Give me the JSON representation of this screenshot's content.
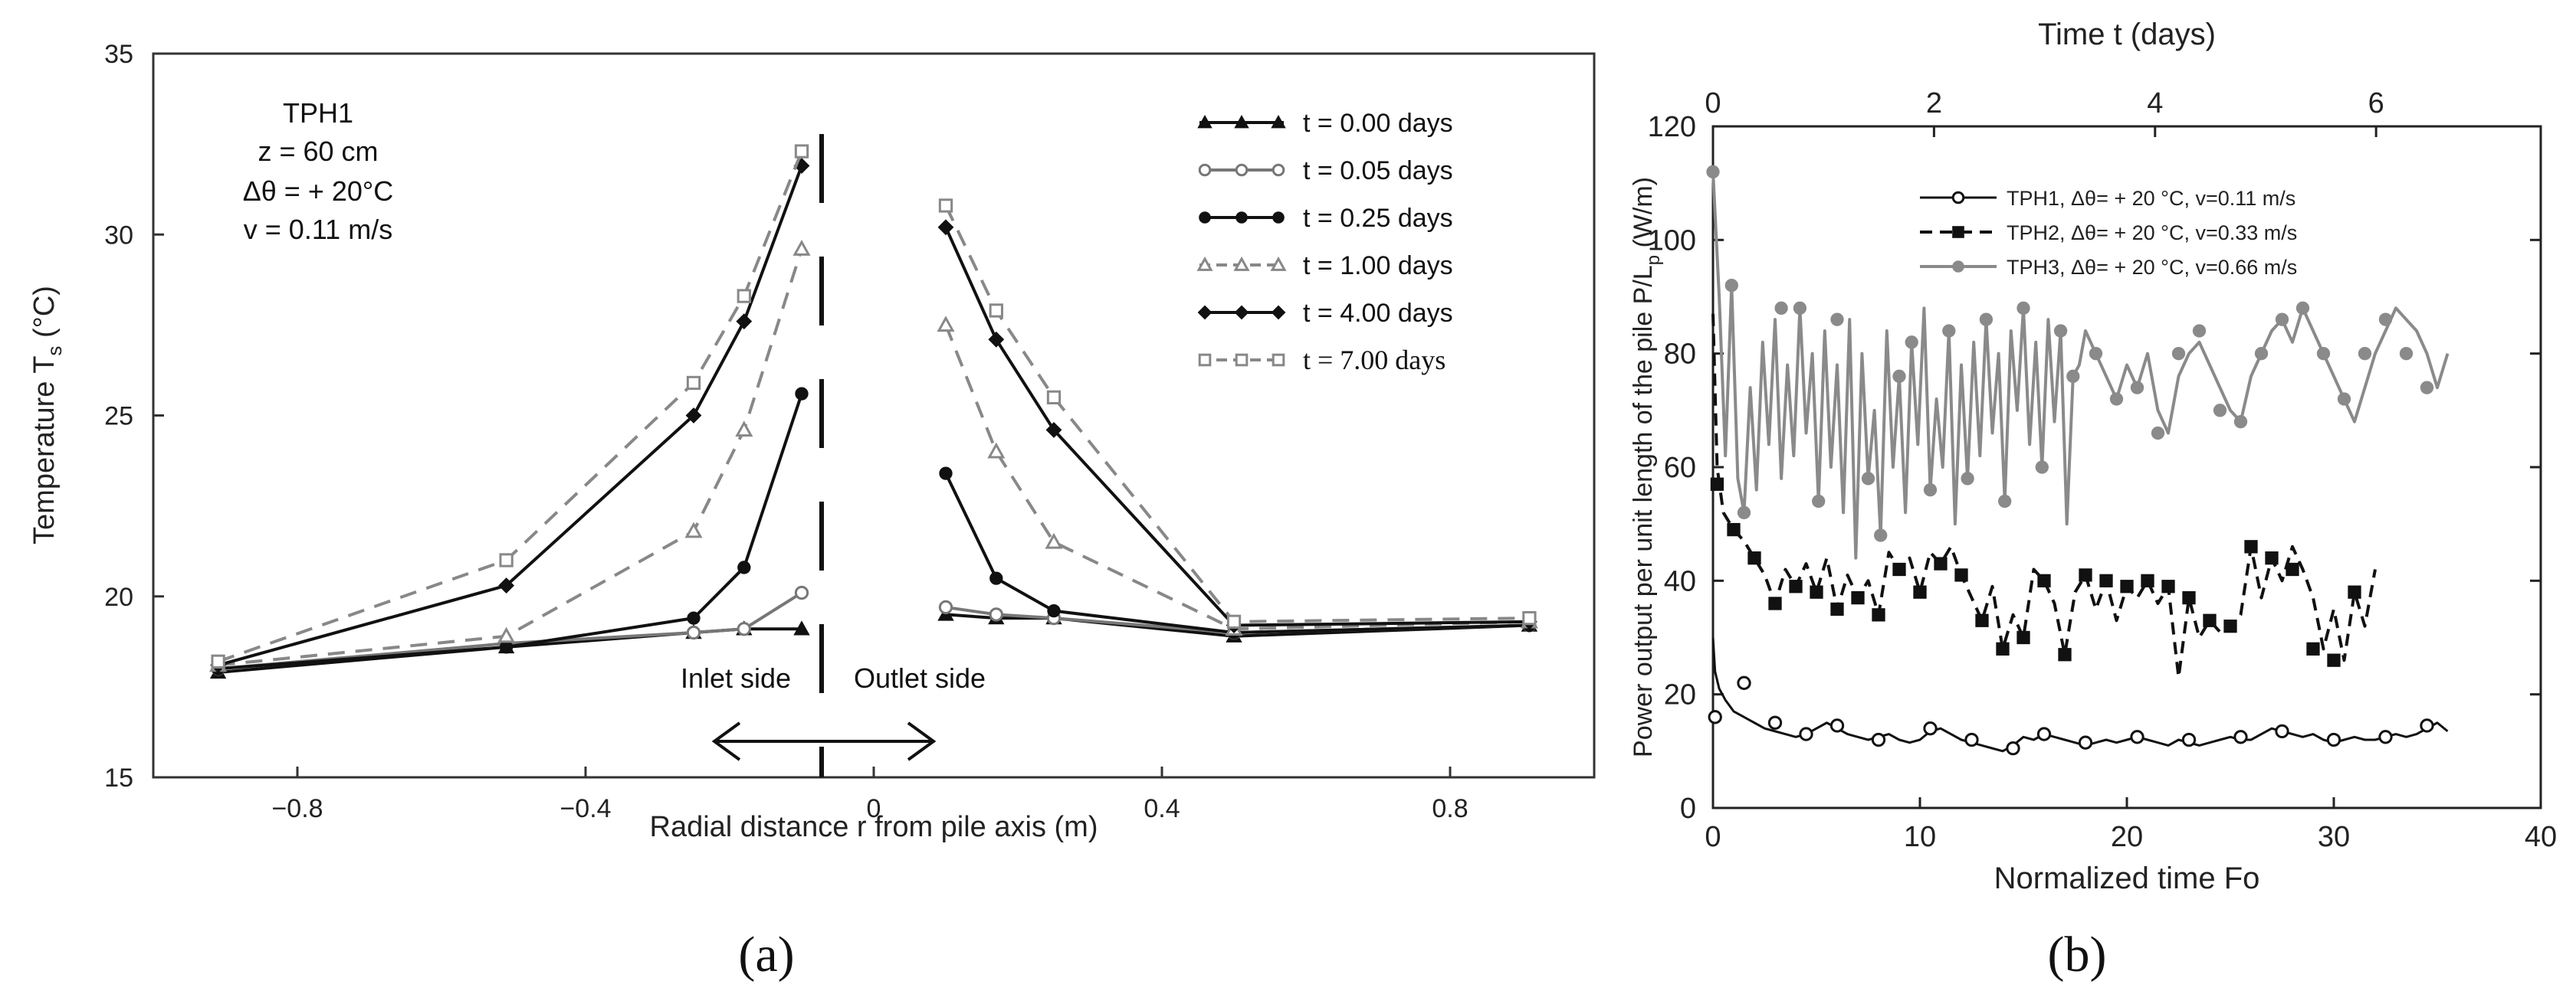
{
  "chart_data": [
    {
      "type": "line",
      "panel_label": "(a)",
      "xlabel": "Radial distance r from pile axis (m)",
      "ylabel_main": "Temperature T",
      "ylabel_sub": "s",
      "ylabel_unit": " (°C)",
      "xlim": [
        -1.0,
        1.0
      ],
      "ylim": [
        15,
        35
      ],
      "xticks": [
        {
          "v": -0.8,
          "label": "−0.8"
        },
        {
          "v": -0.4,
          "label": "−0.4"
        },
        {
          "v": 0,
          "label": "0"
        },
        {
          "v": 0.4,
          "label": "0.4"
        },
        {
          "v": 0.8,
          "label": "0.8"
        }
      ],
      "yticks": [
        {
          "v": 15,
          "label": "15"
        },
        {
          "v": 20,
          "label": "20"
        },
        {
          "v": 25,
          "label": "25"
        },
        {
          "v": 30,
          "label": "30"
        },
        {
          "v": 35,
          "label": "35"
        }
      ],
      "annotation": [
        "TPH1",
        "z = 60 cm",
        "Δθ = + 20°C",
        "v = 0.11 m/s"
      ],
      "inlet_label": "Inlet side",
      "outlet_label": "Outlet side",
      "series": [
        {
          "name": "t = 0.00 days",
          "color": "#111111",
          "dash": "",
          "marker": "triangle",
          "inlet": [
            [
              -0.91,
              17.9
            ],
            [
              -0.51,
              18.6
            ],
            [
              -0.25,
              19.0
            ],
            [
              -0.18,
              19.1
            ],
            [
              -0.1,
              19.1
            ]
          ],
          "outlet": [
            [
              0.1,
              19.5
            ],
            [
              0.17,
              19.4
            ],
            [
              0.25,
              19.4
            ],
            [
              0.5,
              18.9
            ],
            [
              0.91,
              19.2
            ]
          ]
        },
        {
          "name": "t = 0.05 days",
          "color": "#777777",
          "dash": "",
          "marker": "circle-open",
          "inlet": [
            [
              -0.91,
              18.0
            ],
            [
              -0.51,
              18.7
            ],
            [
              -0.25,
              19.0
            ],
            [
              -0.18,
              19.1
            ],
            [
              -0.1,
              20.1
            ]
          ],
          "outlet": [
            [
              0.1,
              19.7
            ],
            [
              0.17,
              19.5
            ],
            [
              0.25,
              19.4
            ],
            [
              0.5,
              19.0
            ],
            [
              0.91,
              19.2
            ]
          ]
        },
        {
          "name": "t = 0.25 days",
          "color": "#111111",
          "dash": "",
          "marker": "circle",
          "inlet": [
            [
              -0.91,
              18.0
            ],
            [
              -0.51,
              18.6
            ],
            [
              -0.25,
              19.4
            ],
            [
              -0.18,
              20.8
            ],
            [
              -0.1,
              25.6
            ]
          ],
          "outlet": [
            [
              0.1,
              23.4
            ],
            [
              0.17,
              20.5
            ],
            [
              0.25,
              19.6
            ],
            [
              0.5,
              19.0
            ],
            [
              0.91,
              19.2
            ]
          ]
        },
        {
          "name": "t = 1.00 days",
          "color": "#888888",
          "dash": "22,14",
          "marker": "triangle-open",
          "inlet": [
            [
              -0.91,
              18.1
            ],
            [
              -0.51,
              18.9
            ],
            [
              -0.25,
              21.8
            ],
            [
              -0.18,
              24.6
            ],
            [
              -0.1,
              29.6
            ]
          ],
          "outlet": [
            [
              0.1,
              27.5
            ],
            [
              0.17,
              24.0
            ],
            [
              0.25,
              21.5
            ],
            [
              0.5,
              19.1
            ],
            [
              0.91,
              19.3
            ]
          ]
        },
        {
          "name": "t = 4.00 days",
          "color": "#111111",
          "dash": "",
          "marker": "diamond",
          "inlet": [
            [
              -0.91,
              18.1
            ],
            [
              -0.51,
              20.3
            ],
            [
              -0.25,
              25.0
            ],
            [
              -0.18,
              27.6
            ],
            [
              -0.1,
              31.9
            ]
          ],
          "outlet": [
            [
              0.1,
              30.2
            ],
            [
              0.17,
              27.1
            ],
            [
              0.25,
              24.6
            ],
            [
              0.5,
              19.2
            ],
            [
              0.91,
              19.3
            ]
          ]
        },
        {
          "name": "t = 7.00 days",
          "color": "#888888",
          "dash": "22,14",
          "marker": "square-open",
          "inlet": [
            [
              -0.91,
              18.2
            ],
            [
              -0.51,
              21.0
            ],
            [
              -0.25,
              25.9
            ],
            [
              -0.18,
              28.3
            ],
            [
              -0.1,
              32.3
            ]
          ],
          "outlet": [
            [
              0.1,
              30.8
            ],
            [
              0.17,
              27.9
            ],
            [
              0.25,
              25.5
            ],
            [
              0.5,
              19.3
            ],
            [
              0.91,
              19.4
            ]
          ]
        }
      ]
    },
    {
      "type": "line",
      "panel_label": "(b)",
      "xlabel": "Normalized time Fo",
      "x2label": "Time t (days)",
      "ylabel_main": "Power output per unit length of the pile P/L",
      "ylabel_sub": "p",
      "ylabel_unit": " (W/m)",
      "xlim": [
        0,
        40
      ],
      "ylim": [
        0,
        120
      ],
      "x2lim": [
        0,
        7.49
      ],
      "xticks": [
        {
          "v": 0,
          "label": "0"
        },
        {
          "v": 10,
          "label": "10"
        },
        {
          "v": 20,
          "label": "20"
        },
        {
          "v": 30,
          "label": "30"
        },
        {
          "v": 40,
          "label": "40"
        }
      ],
      "yticks": [
        {
          "v": 0,
          "label": "0"
        },
        {
          "v": 20,
          "label": "20"
        },
        {
          "v": 40,
          "label": "40"
        },
        {
          "v": 60,
          "label": "60"
        },
        {
          "v": 80,
          "label": "80"
        },
        {
          "v": 100,
          "label": "100"
        },
        {
          "v": 120,
          "label": "120"
        }
      ],
      "x2ticks": [
        {
          "v": 0,
          "label": "0"
        },
        {
          "v": 2,
          "label": "2"
        },
        {
          "v": 4,
          "label": "4"
        },
        {
          "v": 6,
          "label": "6"
        }
      ],
      "series": [
        {
          "name": "TPH1, Δθ= + 20 °C, v=0.11 m/s",
          "color": "#111111",
          "dash": "",
          "width": 3,
          "marker": "circle-open",
          "x": [
            0,
            0.1,
            0.3,
            0.6,
            1.0,
            1.5,
            2.0,
            2.5,
            3.0,
            3.5,
            4.0,
            4.5,
            5.0,
            5.5,
            6.0,
            6.5,
            7.0,
            7.5,
            8.0,
            8.5,
            9.0,
            9.5,
            10.0,
            10.5,
            11.0,
            11.5,
            12.0,
            12.5,
            13.0,
            13.5,
            14.0,
            14.5,
            15.0,
            15.5,
            16.0,
            16.5,
            17.0,
            17.5,
            18.0,
            18.5,
            19.0,
            19.5,
            20.0,
            20.5,
            21.0,
            21.5,
            22.0,
            22.5,
            23.0,
            23.5,
            24.0,
            24.5,
            25.0,
            25.5,
            26.0,
            26.5,
            27.0,
            27.5,
            28.0,
            28.5,
            29.0,
            29.5,
            30.0,
            30.5,
            31.0,
            31.5,
            32.0,
            32.5,
            33.0,
            33.5,
            34.0,
            34.5,
            35.0,
            35.5
          ],
          "y": [
            30,
            24,
            21,
            19,
            17,
            16,
            15,
            14,
            13.5,
            13,
            12.5,
            13,
            14,
            15,
            14,
            13,
            12.5,
            12,
            12.5,
            13,
            12,
            11.5,
            12,
            13.5,
            14,
            13,
            12,
            11.5,
            11,
            10.5,
            10,
            11,
            12.5,
            12,
            13,
            12.5,
            12,
            11.5,
            11,
            11.5,
            12,
            11.5,
            12,
            12.5,
            12,
            11.5,
            11,
            12,
            11.5,
            11,
            11.5,
            12,
            12.5,
            12,
            12,
            13,
            14,
            13.5,
            13,
            12.5,
            13,
            12,
            11.5,
            12,
            12.5,
            12,
            12,
            12.5,
            13,
            12.5,
            13,
            14,
            15,
            13.5
          ],
          "markers_x": [
            0.1,
            1.5,
            3.0,
            4.5,
            6.0,
            8.0,
            10.5,
            12.5,
            14.5,
            16.0,
            18.0,
            20.5,
            23.0,
            25.5,
            27.5,
            30.0,
            32.5,
            34.5
          ],
          "markers_y": [
            16,
            22,
            15,
            13,
            14.5,
            12,
            14,
            12,
            10.5,
            13,
            11.5,
            12.5,
            12,
            12.5,
            13.5,
            12,
            12.5,
            14.5
          ]
        },
        {
          "name": "TPH2, Δθ= + 20 °C, v=0.33 m/s",
          "color": "#111111",
          "dash": "16,10",
          "width": 4,
          "marker": "square",
          "x": [
            0,
            0.2,
            0.5,
            1.0,
            1.5,
            2.0,
            2.5,
            3.0,
            3.5,
            4.0,
            4.5,
            5.0,
            5.5,
            6.0,
            6.5,
            7.0,
            7.5,
            8.0,
            8.5,
            9.0,
            9.5,
            10.0,
            10.5,
            11.0,
            11.5,
            12.0,
            12.5,
            13.0,
            13.5,
            14.0,
            14.5,
            15.0,
            15.5,
            16.0,
            16.5,
            17.0,
            17.5,
            18.0,
            18.5,
            19.0,
            19.5,
            20.0,
            20.5,
            21.0,
            21.5,
            22.0,
            22.5,
            23.0,
            23.5,
            24.0,
            24.5,
            25.0,
            25.5,
            26.0,
            26.5,
            27.0,
            27.5,
            28.0,
            28.5,
            29.0,
            29.5,
            30.0,
            30.5,
            31.0,
            31.5,
            32.0
          ],
          "y": [
            87,
            60,
            52,
            49,
            47,
            44,
            41,
            36,
            42,
            39,
            43,
            38,
            44,
            35,
            41,
            37,
            40,
            34,
            45,
            42,
            44,
            38,
            45,
            43,
            46,
            41,
            37,
            33,
            39,
            28,
            34,
            30,
            42,
            40,
            36,
            27,
            38,
            41,
            35,
            40,
            33,
            39,
            37,
            40,
            36,
            39,
            23,
            37,
            30,
            33,
            31,
            32,
            34,
            46,
            37,
            44,
            40,
            46,
            42,
            37,
            28,
            35,
            26,
            38,
            32,
            42
          ],
          "markers_x": [
            0.2,
            1.0,
            2.0,
            3.0,
            4.0,
            5.0,
            6.0,
            7.0,
            8.0,
            9.0,
            10.0,
            11.0,
            12.0,
            13.0,
            14.0,
            15.0,
            16.0,
            17.0,
            18.0,
            19.0,
            20.0,
            21.0,
            22.0,
            23.0,
            24.0,
            25.0,
            26.0,
            27.0,
            28.0,
            29.0,
            30.0,
            31.0
          ],
          "markers_y": [
            57,
            49,
            44,
            36,
            39,
            38,
            35,
            37,
            34,
            42,
            38,
            43,
            41,
            33,
            28,
            30,
            40,
            27,
            41,
            40,
            39,
            40,
            39,
            37,
            33,
            32,
            46,
            44,
            42,
            28,
            26,
            38
          ]
        },
        {
          "name": "TPH3, Δθ= + 20 °C, v=0.66 m/s",
          "color": "#8a8a8a",
          "dash": "",
          "width": 4,
          "marker": "circle",
          "x": [
            0,
            0.3,
            0.6,
            0.9,
            1.2,
            1.5,
            1.8,
            2.1,
            2.4,
            2.7,
            3.0,
            3.3,
            3.6,
            3.9,
            4.2,
            4.5,
            4.8,
            5.1,
            5.4,
            5.7,
            6.0,
            6.3,
            6.6,
            6.9,
            7.2,
            7.5,
            7.8,
            8.1,
            8.4,
            8.7,
            9.0,
            9.3,
            9.6,
            9.9,
            10.2,
            10.5,
            10.8,
            11.1,
            11.4,
            11.7,
            12.0,
            12.3,
            12.6,
            12.9,
            13.2,
            13.5,
            13.8,
            14.1,
            14.4,
            14.7,
            15.0,
            15.3,
            15.6,
            15.9,
            16.2,
            16.5,
            16.8,
            17.1,
            17.4,
            17.7,
            18.0,
            18.5,
            19.0,
            19.5,
            20.0,
            20.5,
            21.0,
            21.5,
            22.0,
            22.5,
            23.0,
            23.5,
            24.0,
            24.5,
            25.0,
            25.5,
            26.0,
            26.5,
            27.0,
            27.5,
            28.0,
            28.5,
            29.0,
            29.5,
            30.0,
            30.5,
            31.0,
            31.5,
            32.0,
            32.5,
            33.0,
            33.5,
            34.0,
            34.5,
            35.0,
            35.5
          ],
          "y": [
            112,
            90,
            62,
            92,
            58,
            52,
            74,
            56,
            82,
            64,
            86,
            58,
            78,
            62,
            88,
            66,
            80,
            54,
            84,
            60,
            78,
            52,
            86,
            44,
            80,
            58,
            70,
            48,
            84,
            60,
            76,
            52,
            82,
            64,
            88,
            56,
            72,
            60,
            84,
            50,
            78,
            58,
            82,
            62,
            86,
            66,
            80,
            54,
            84,
            70,
            88,
            64,
            82,
            60,
            86,
            68,
            84,
            50,
            76,
            78,
            84,
            80,
            76,
            72,
            78,
            74,
            80,
            70,
            66,
            76,
            80,
            82,
            78,
            74,
            70,
            68,
            76,
            80,
            84,
            86,
            82,
            88,
            84,
            80,
            76,
            72,
            68,
            74,
            80,
            84,
            88,
            86,
            84,
            80,
            74,
            80
          ],
          "markers_x": [
            0,
            0.9,
            1.5,
            3.3,
            4.2,
            5.1,
            6.0,
            7.5,
            8.1,
            9.0,
            9.6,
            10.5,
            11.4,
            12.3,
            13.2,
            14.1,
            15.0,
            15.9,
            16.8,
            17.4,
            18.5,
            19.5,
            20.5,
            21.5,
            22.5,
            23.5,
            24.5,
            25.5,
            26.5,
            27.5,
            28.5,
            29.5,
            30.5,
            31.5,
            32.5,
            33.5,
            34.5
          ],
          "markers_y": [
            112,
            92,
            52,
            88,
            88,
            54,
            86,
            58,
            48,
            76,
            82,
            56,
            84,
            58,
            86,
            54,
            88,
            60,
            84,
            76,
            80,
            72,
            74,
            66,
            80,
            84,
            70,
            68,
            80,
            86,
            88,
            80,
            72,
            80,
            86,
            80,
            74
          ]
        }
      ]
    }
  ]
}
